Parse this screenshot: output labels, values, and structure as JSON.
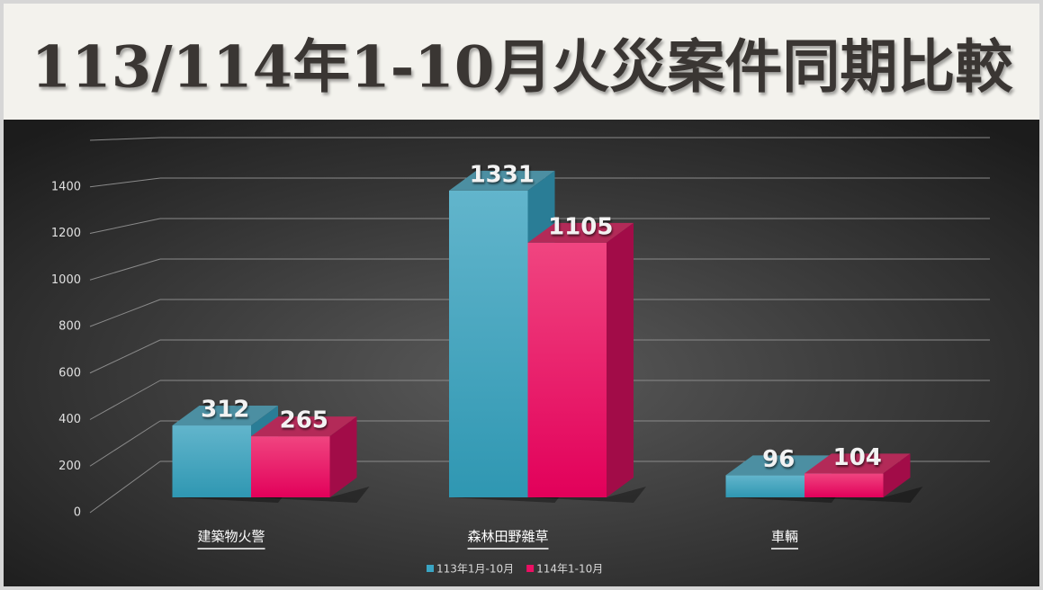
{
  "chart_data": {
    "type": "bar3d",
    "title": "113/114年1-10月火災案件同期比較",
    "categories": [
      "建築物火警",
      "森林田野雜草",
      "車輛"
    ],
    "series": [
      {
        "name": "113年1月-10月",
        "color": "#3aa5c4",
        "values": [
          312,
          1331,
          96
        ]
      },
      {
        "name": "114年1-10月",
        "color": "#ec0f63",
        "values": [
          265,
          1105,
          104
        ]
      }
    ],
    "ylim": [
      0,
      1600
    ],
    "yticks": [
      0,
      200,
      400,
      600,
      800,
      1000,
      1200,
      1400
    ],
    "grid": true,
    "legend": "bottom"
  }
}
